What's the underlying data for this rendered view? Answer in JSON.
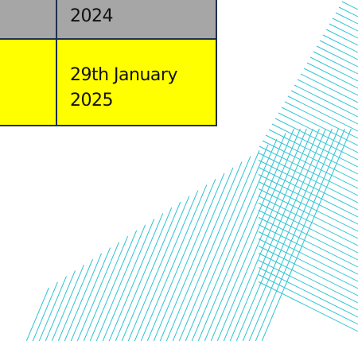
{
  "table": {
    "rows": [
      {
        "date": "2024"
      },
      {
        "date": "29th January 2025"
      }
    ]
  }
}
